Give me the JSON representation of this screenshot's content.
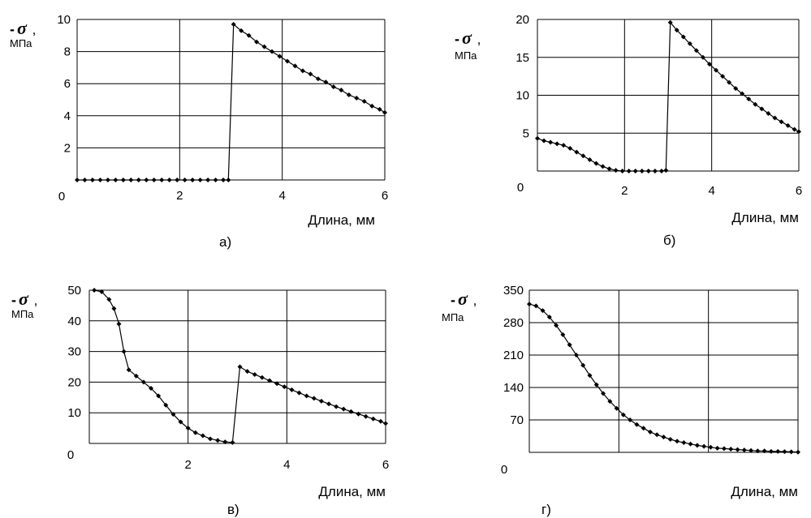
{
  "chart_data": [
    {
      "type": "line",
      "caption": "а)",
      "xlabel": "Длина, мм",
      "ylabel_symbol": "σ",
      "ylabel_prefix": "-",
      "ylabel_sep": ",",
      "ylabel_unit": "МПа",
      "xlim": [
        0,
        6
      ],
      "ylim": [
        0,
        10
      ],
      "xticks": [
        0,
        2,
        4,
        6
      ],
      "yticks": [
        0,
        2,
        4,
        6,
        8,
        10
      ],
      "grid": true,
      "series": [
        {
          "points": [
            [
              0.0,
              0
            ],
            [
              0.15,
              0
            ],
            [
              0.3,
              0
            ],
            [
              0.45,
              0
            ],
            [
              0.6,
              0
            ],
            [
              0.75,
              0
            ],
            [
              0.9,
              0
            ],
            [
              1.05,
              0
            ],
            [
              1.2,
              0
            ],
            [
              1.35,
              0
            ],
            [
              1.5,
              0
            ],
            [
              1.65,
              0
            ],
            [
              1.8,
              0
            ],
            [
              1.95,
              0
            ],
            [
              2.1,
              0
            ],
            [
              2.25,
              0
            ],
            [
              2.4,
              0
            ],
            [
              2.55,
              0
            ],
            [
              2.7,
              0
            ],
            [
              2.85,
              0
            ],
            [
              2.95,
              0
            ],
            [
              3.05,
              9.7
            ],
            [
              3.2,
              9.3
            ],
            [
              3.35,
              9.0
            ],
            [
              3.5,
              8.6
            ],
            [
              3.65,
              8.3
            ],
            [
              3.8,
              8.0
            ],
            [
              3.95,
              7.7
            ],
            [
              4.1,
              7.4
            ],
            [
              4.25,
              7.1
            ],
            [
              4.4,
              6.8
            ],
            [
              4.55,
              6.6
            ],
            [
              4.7,
              6.3
            ],
            [
              4.85,
              6.1
            ],
            [
              5.0,
              5.8
            ],
            [
              5.15,
              5.6
            ],
            [
              5.3,
              5.3
            ],
            [
              5.45,
              5.1
            ],
            [
              5.6,
              4.9
            ],
            [
              5.75,
              4.6
            ],
            [
              5.9,
              4.4
            ],
            [
              6.0,
              4.2
            ]
          ],
          "markers": true
        }
      ]
    },
    {
      "type": "line",
      "caption": "б)",
      "xlabel": "Длина, мм",
      "ylabel_symbol": "σ",
      "ylabel_prefix": "-",
      "ylabel_sep": ",",
      "ylabel_unit": "МПа",
      "xlim": [
        0,
        6
      ],
      "ylim": [
        0,
        20
      ],
      "xticks": [
        0,
        2,
        4,
        6
      ],
      "yticks": [
        5,
        10,
        15,
        20
      ],
      "ytick_zero_label": "0",
      "grid": true,
      "series": [
        {
          "points": [
            [
              0.0,
              4.3
            ],
            [
              0.15,
              4.0
            ],
            [
              0.3,
              3.8
            ],
            [
              0.45,
              3.6
            ],
            [
              0.6,
              3.4
            ],
            [
              0.75,
              3.0
            ],
            [
              0.9,
              2.5
            ],
            [
              1.05,
              2.0
            ],
            [
              1.2,
              1.5
            ],
            [
              1.35,
              1.0
            ],
            [
              1.5,
              0.6
            ],
            [
              1.65,
              0.3
            ],
            [
              1.8,
              0.1
            ],
            [
              1.95,
              0.0
            ],
            [
              2.1,
              0.0
            ],
            [
              2.25,
              0.0
            ],
            [
              2.4,
              0.0
            ],
            [
              2.55,
              0.0
            ],
            [
              2.7,
              0.0
            ],
            [
              2.85,
              0.0
            ],
            [
              2.95,
              0.1
            ],
            [
              3.05,
              19.6
            ],
            [
              3.2,
              18.6
            ],
            [
              3.35,
              17.7
            ],
            [
              3.5,
              16.8
            ],
            [
              3.65,
              15.9
            ],
            [
              3.8,
              15.0
            ],
            [
              3.95,
              14.1
            ],
            [
              4.1,
              13.3
            ],
            [
              4.25,
              12.5
            ],
            [
              4.4,
              11.7
            ],
            [
              4.55,
              10.9
            ],
            [
              4.7,
              10.2
            ],
            [
              4.85,
              9.5
            ],
            [
              5.0,
              8.8
            ],
            [
              5.15,
              8.2
            ],
            [
              5.3,
              7.6
            ],
            [
              5.45,
              7.0
            ],
            [
              5.6,
              6.5
            ],
            [
              5.75,
              6.0
            ],
            [
              5.9,
              5.5
            ],
            [
              6.0,
              5.2
            ]
          ],
          "markers": true
        }
      ]
    },
    {
      "type": "line",
      "caption": "в)",
      "xlabel": "Длина, мм",
      "ylabel_symbol": "σ",
      "ylabel_prefix": "-",
      "ylabel_sep": ",",
      "ylabel_unit": "МПа",
      "xlim": [
        0,
        6
      ],
      "ylim": [
        0,
        50
      ],
      "xticks": [
        0,
        2,
        4,
        6
      ],
      "yticks": [
        0,
        10,
        20,
        30,
        40,
        50
      ],
      "grid": true,
      "series": [
        {
          "points": [
            [
              0.1,
              50
            ],
            [
              0.25,
              49.5
            ],
            [
              0.4,
              47
            ],
            [
              0.5,
              44
            ],
            [
              0.6,
              39
            ],
            [
              0.7,
              30
            ],
            [
              0.8,
              24
            ],
            [
              0.95,
              22
            ],
            [
              1.1,
              20
            ],
            [
              1.25,
              18
            ],
            [
              1.4,
              15.5
            ],
            [
              1.55,
              12.5
            ],
            [
              1.7,
              9.5
            ],
            [
              1.85,
              7
            ],
            [
              2.0,
              5
            ],
            [
              2.15,
              3.5
            ],
            [
              2.3,
              2.5
            ],
            [
              2.45,
              1.5
            ],
            [
              2.6,
              1.0
            ],
            [
              2.75,
              0.5
            ],
            [
              2.9,
              0.3
            ],
            [
              3.05,
              25.0
            ],
            [
              3.2,
              23.5
            ],
            [
              3.35,
              22.5
            ],
            [
              3.5,
              21.5
            ],
            [
              3.65,
              20.5
            ],
            [
              3.8,
              19.5
            ],
            [
              3.95,
              18.5
            ],
            [
              4.1,
              17.5
            ],
            [
              4.25,
              16.5
            ],
            [
              4.4,
              15.5
            ],
            [
              4.55,
              14.7
            ],
            [
              4.7,
              13.8
            ],
            [
              4.85,
              12.9
            ],
            [
              5.0,
              12.0
            ],
            [
              5.15,
              11.2
            ],
            [
              5.3,
              10.4
            ],
            [
              5.45,
              9.6
            ],
            [
              5.6,
              8.8
            ],
            [
              5.75,
              8.0
            ],
            [
              5.9,
              7.2
            ],
            [
              6.0,
              6.5
            ]
          ],
          "markers": true
        }
      ]
    },
    {
      "type": "line",
      "caption": "г)",
      "xlabel": "Длина, мм",
      "ylabel_symbol": "σ",
      "ylabel_prefix": "-",
      "ylabel_sep": ",",
      "ylabel_unit": "МПа",
      "xlim": [
        0,
        6
      ],
      "ylim": [
        0,
        350
      ],
      "yticks": [
        0,
        70,
        140,
        210,
        280,
        350
      ],
      "xtick_grid": [
        0,
        2,
        4,
        6
      ],
      "grid": true,
      "series": [
        {
          "points": [
            [
              0.0,
              320
            ],
            [
              0.15,
              316
            ],
            [
              0.3,
              306
            ],
            [
              0.45,
              292
            ],
            [
              0.6,
              274
            ],
            [
              0.75,
              254
            ],
            [
              0.9,
              232
            ],
            [
              1.05,
              210
            ],
            [
              1.2,
              188
            ],
            [
              1.35,
              166
            ],
            [
              1.5,
              146
            ],
            [
              1.65,
              127
            ],
            [
              1.8,
              110
            ],
            [
              1.95,
              95
            ],
            [
              2.1,
              81
            ],
            [
              2.25,
              70
            ],
            [
              2.4,
              60
            ],
            [
              2.55,
              52
            ],
            [
              2.7,
              44
            ],
            [
              2.85,
              38
            ],
            [
              3.0,
              33
            ],
            [
              3.15,
              28
            ],
            [
              3.3,
              24
            ],
            [
              3.45,
              21
            ],
            [
              3.6,
              18
            ],
            [
              3.75,
              15
            ],
            [
              3.9,
              13
            ],
            [
              4.05,
              11
            ],
            [
              4.2,
              9
            ],
            [
              4.35,
              8
            ],
            [
              4.5,
              7
            ],
            [
              4.65,
              6
            ],
            [
              4.8,
              5
            ],
            [
              4.95,
              4
            ],
            [
              5.1,
              3
            ],
            [
              5.25,
              3
            ],
            [
              5.4,
              2
            ],
            [
              5.55,
              2
            ],
            [
              5.7,
              1.5
            ],
            [
              5.85,
              1
            ],
            [
              6.0,
              0.5
            ]
          ],
          "markers": true
        }
      ]
    }
  ]
}
